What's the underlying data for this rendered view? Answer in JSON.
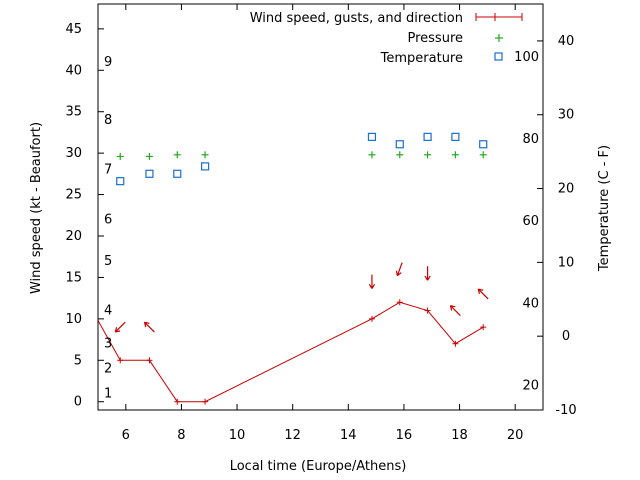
{
  "chart_data": {
    "type": "line",
    "xlabel": "Local time (Europe/Athens)",
    "ylabel": "Wind speed (kt - Beaufort)",
    "y2label": "Temperature (C - F)",
    "xlim": [
      5,
      21
    ],
    "ylim": [
      -1,
      48
    ],
    "y2lim": [
      -10,
      45
    ],
    "x_ticks": [
      6,
      8,
      10,
      12,
      14,
      16,
      18,
      20
    ],
    "y_ticks": [
      0,
      5,
      10,
      15,
      20,
      25,
      30,
      35,
      40,
      45
    ],
    "beaufort_ticks": [
      {
        "label": "1",
        "y": 1
      },
      {
        "label": "2",
        "y": 4
      },
      {
        "label": "3",
        "y": 7
      },
      {
        "label": "4",
        "y": 11
      },
      {
        "label": "5",
        "y": 17
      },
      {
        "label": "6",
        "y": 22
      },
      {
        "label": "7",
        "y": 28
      },
      {
        "label": "8",
        "y": 34
      },
      {
        "label": "9",
        "y": 41
      }
    ],
    "y2_ticks": [
      -10,
      0,
      10,
      20,
      30,
      40
    ],
    "fahrenheit_ticks": [
      {
        "label": "20",
        "t": -6.7
      },
      {
        "label": "40",
        "t": 4.4
      },
      {
        "label": "60",
        "t": 15.6
      },
      {
        "label": "80",
        "t": 26.7
      },
      {
        "label": "100",
        "t": 37.8
      }
    ],
    "legend_position": "top-right",
    "series": [
      {
        "name": "Wind speed, gusts, and direction",
        "x": [
          4.8,
          5.8,
          6.85,
          7.85,
          8.85,
          14.85,
          15.85,
          16.85,
          17.85,
          18.85
        ],
        "y": [
          11,
          5,
          5,
          0,
          0,
          10,
          12,
          11,
          7,
          9
        ],
        "arrows": [
          {
            "x": 5.8,
            "y": 9,
            "dir_deg": 225
          },
          {
            "x": 6.85,
            "y": 9,
            "dir_deg": 315
          },
          {
            "x": 14.85,
            "y": 14.5,
            "dir_deg": 180
          },
          {
            "x": 15.85,
            "y": 16,
            "dir_deg": 200
          },
          {
            "x": 16.85,
            "y": 15.5,
            "dir_deg": 180
          },
          {
            "x": 17.85,
            "y": 11,
            "dir_deg": 315
          },
          {
            "x": 18.85,
            "y": 13,
            "dir_deg": 315
          }
        ]
      },
      {
        "name": "Pressure",
        "x": [
          5.8,
          6.85,
          7.85,
          8.85,
          14.85,
          15.85,
          16.85,
          17.85,
          18.85
        ],
        "y": [
          29.6,
          29.6,
          29.8,
          29.8,
          29.8,
          29.8,
          29.8,
          29.8,
          29.8
        ]
      },
      {
        "name": "Temperature",
        "axis": "y2",
        "x": [
          5.8,
          6.85,
          7.85,
          8.85,
          14.85,
          15.85,
          16.85,
          17.85,
          18.85
        ],
        "y": [
          21,
          22,
          22,
          23,
          27,
          26,
          27,
          27,
          26
        ]
      }
    ]
  }
}
